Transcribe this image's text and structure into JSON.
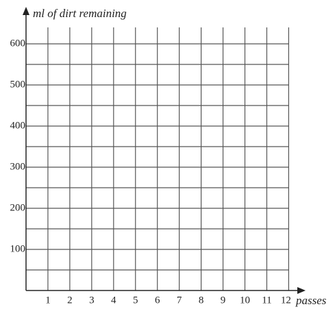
{
  "chart_data": {
    "type": "line",
    "y_label": "ml of dirt remaining",
    "x_label": "passes",
    "xlim": [
      0,
      12
    ],
    "xticks": [
      1,
      2,
      3,
      4,
      5,
      6,
      7,
      8,
      9,
      10,
      11,
      12
    ],
    "ylim": [
      0,
      640
    ],
    "yticks": [
      100,
      200,
      300,
      400,
      500,
      600
    ],
    "yminorticks": [
      50,
      150,
      250,
      350,
      450,
      550
    ],
    "grid": true,
    "series": []
  }
}
